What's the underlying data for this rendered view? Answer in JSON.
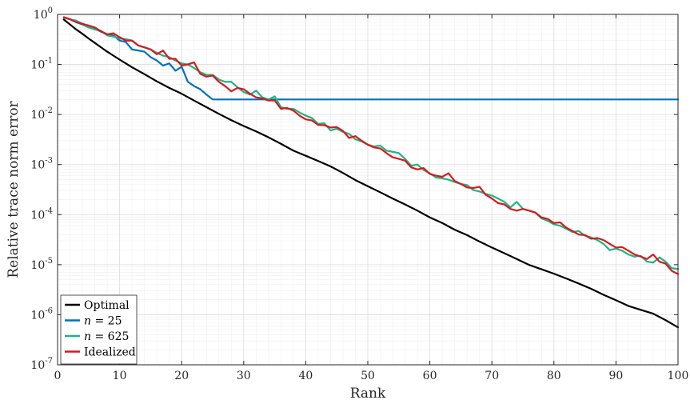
{
  "chart_data": {
    "type": "line",
    "xlabel": "Rank",
    "ylabel": "Relative trace norm error",
    "xlim": [
      0,
      100
    ],
    "ylim": [
      1e-07,
      1
    ],
    "yscale": "log",
    "grid": true,
    "legend_position": "bottom-left",
    "x_ticks": [
      0,
      10,
      20,
      30,
      40,
      50,
      60,
      70,
      80,
      90,
      100
    ],
    "x_tick_labels": [
      "0",
      "10",
      "20",
      "30",
      "40",
      "50",
      "60",
      "70",
      "80",
      "90",
      "100"
    ],
    "y_ticks": [
      1e-07,
      1e-06,
      1e-05,
      0.0001,
      0.001,
      0.01,
      0.1,
      1
    ],
    "y_tick_exponents": [
      "-7",
      "-6",
      "-5",
      "-4",
      "-3",
      "-2",
      "-1",
      "0"
    ],
    "y_tick_base": "10",
    "series": [
      {
        "name": "Optimal",
        "color": "#000000",
        "points": [
          [
            1,
            0.79
          ],
          [
            2,
            0.63
          ],
          [
            3,
            0.5
          ],
          [
            4,
            0.41
          ],
          [
            5,
            0.33
          ],
          [
            6,
            0.27
          ],
          [
            7,
            0.22
          ],
          [
            8,
            0.18
          ],
          [
            10,
            0.125
          ],
          [
            12,
            0.088
          ],
          [
            14,
            0.064
          ],
          [
            16,
            0.046
          ],
          [
            18,
            0.034
          ],
          [
            20,
            0.026
          ],
          [
            22,
            0.019
          ],
          [
            24,
            0.014
          ],
          [
            26,
            0.0103
          ],
          [
            28,
            0.0077
          ],
          [
            30,
            0.0059
          ],
          [
            32,
            0.0046
          ],
          [
            34,
            0.0035
          ],
          [
            36,
            0.0026
          ],
          [
            38,
            0.0019
          ],
          [
            40,
            0.0015
          ],
          [
            42,
            0.00118
          ],
          [
            44,
            0.00092
          ],
          [
            46,
            0.00068
          ],
          [
            48,
            0.00049
          ],
          [
            50,
            0.00037
          ],
          [
            52,
            0.00028
          ],
          [
            54,
            0.00021
          ],
          [
            56,
            0.00016
          ],
          [
            58,
            0.00012
          ],
          [
            60,
            8.8e-05
          ],
          [
            62,
            6.8e-05
          ],
          [
            64,
            5e-05
          ],
          [
            66,
            3.9e-05
          ],
          [
            68,
            2.9e-05
          ],
          [
            70,
            2.2e-05
          ],
          [
            72,
            1.7e-05
          ],
          [
            74,
            1.3e-05
          ],
          [
            76,
            9.9e-06
          ],
          [
            78,
            8.1e-06
          ],
          [
            80,
            6.6e-06
          ],
          [
            82,
            5.3e-06
          ],
          [
            84,
            4.2e-06
          ],
          [
            86,
            3.3e-06
          ],
          [
            88,
            2.5e-06
          ],
          [
            90,
            1.95e-06
          ],
          [
            92,
            1.5e-06
          ],
          [
            94,
            1.25e-06
          ],
          [
            96,
            1.05e-06
          ],
          [
            98,
            7.8e-07
          ],
          [
            100,
            5.6e-07
          ]
        ]
      },
      {
        "name": "n = 25",
        "name_var": "n",
        "name_rest": " = 25",
        "color": "#0072BD",
        "points": [
          [
            1,
            0.87
          ],
          [
            2,
            0.8
          ],
          [
            3,
            0.7
          ],
          [
            4,
            0.63
          ],
          [
            5,
            0.55
          ],
          [
            6,
            0.52
          ],
          [
            7,
            0.45
          ],
          [
            8,
            0.4
          ],
          [
            9,
            0.38
          ],
          [
            10,
            0.3
          ],
          [
            11,
            0.28
          ],
          [
            12,
            0.2
          ],
          [
            13,
            0.19
          ],
          [
            14,
            0.18
          ],
          [
            15,
            0.14
          ],
          [
            16,
            0.12
          ],
          [
            17,
            0.095
          ],
          [
            18,
            0.105
          ],
          [
            19,
            0.075
          ],
          [
            20,
            0.09
          ],
          [
            21,
            0.045
          ],
          [
            22,
            0.037
          ],
          [
            23,
            0.032
          ],
          [
            24,
            0.025
          ],
          [
            25,
            0.02
          ],
          [
            100,
            0.02
          ]
        ]
      },
      {
        "name": "n = 625",
        "name_var": "n",
        "name_rest": " = 625",
        "color": "#20B482",
        "points": [
          [
            1,
            0.86
          ],
          [
            2,
            0.8
          ],
          [
            3,
            0.75
          ],
          [
            4,
            0.65
          ],
          [
            5,
            0.55
          ],
          [
            6,
            0.5
          ],
          [
            7,
            0.47
          ],
          [
            8,
            0.38
          ],
          [
            9,
            0.36
          ],
          [
            10,
            0.33
          ],
          [
            11,
            0.32
          ],
          [
            12,
            0.3
          ],
          [
            13,
            0.24
          ],
          [
            14,
            0.22
          ],
          [
            15,
            0.2
          ],
          [
            16,
            0.17
          ],
          [
            17,
            0.15
          ],
          [
            18,
            0.14
          ],
          [
            19,
            0.12
          ],
          [
            20,
            0.105
          ],
          [
            21,
            0.1
          ],
          [
            22,
            0.085
          ],
          [
            23,
            0.07
          ],
          [
            24,
            0.062
          ],
          [
            25,
            0.062
          ],
          [
            26,
            0.05
          ],
          [
            27,
            0.045
          ],
          [
            28,
            0.045
          ],
          [
            29,
            0.035
          ],
          [
            30,
            0.028
          ],
          [
            31,
            0.025
          ],
          [
            32,
            0.03
          ],
          [
            33,
            0.022
          ],
          [
            34,
            0.02
          ],
          [
            35,
            0.023
          ],
          [
            36,
            0.014
          ],
          [
            37,
            0.013
          ],
          [
            38,
            0.013
          ],
          [
            39,
            0.011
          ],
          [
            40,
            0.0095
          ],
          [
            41,
            0.0085
          ],
          [
            42,
            0.0065
          ],
          [
            43,
            0.0067
          ],
          [
            44,
            0.0048
          ],
          [
            45,
            0.0052
          ],
          [
            46,
            0.0045
          ],
          [
            47,
            0.0041
          ],
          [
            48,
            0.0032
          ],
          [
            49,
            0.0029
          ],
          [
            50,
            0.0025
          ],
          [
            51,
            0.0023
          ],
          [
            52,
            0.0024
          ],
          [
            53,
            0.0019
          ],
          [
            54,
            0.0018
          ],
          [
            55,
            0.0017
          ],
          [
            56,
            0.0013
          ],
          [
            57,
            0.00095
          ],
          [
            58,
            0.001
          ],
          [
            59,
            0.00078
          ],
          [
            60,
            0.00067
          ],
          [
            61,
            0.00055
          ],
          [
            62,
            0.00053
          ],
          [
            63,
            0.0005
          ],
          [
            64,
            0.00045
          ],
          [
            65,
            0.00041
          ],
          [
            66,
            0.00039
          ],
          [
            67,
            0.00031
          ],
          [
            68,
            0.00029
          ],
          [
            69,
            0.00026
          ],
          [
            70,
            0.00024
          ],
          [
            71,
            0.00021
          ],
          [
            72,
            0.00018
          ],
          [
            73,
            0.00014
          ],
          [
            74,
            0.00018
          ],
          [
            75,
            0.00013
          ],
          [
            76,
            0.00012
          ],
          [
            77,
            0.00011
          ],
          [
            78,
            8.4e-05
          ],
          [
            79,
            7.5e-05
          ],
          [
            80,
            6.4e-05
          ],
          [
            81,
            6e-05
          ],
          [
            82,
            5.2e-05
          ],
          [
            83,
            4.5e-05
          ],
          [
            84,
            4.7e-05
          ],
          [
            85,
            3.8e-05
          ],
          [
            86,
            3.5e-05
          ],
          [
            87,
            3.1e-05
          ],
          [
            88,
            2.6e-05
          ],
          [
            89,
            1.95e-05
          ],
          [
            90,
            2.1e-05
          ],
          [
            91,
            1.9e-05
          ],
          [
            92,
            1.6e-05
          ],
          [
            93,
            1.45e-05
          ],
          [
            94,
            1.5e-05
          ],
          [
            95,
            1.15e-05
          ],
          [
            96,
            1.1e-05
          ],
          [
            97,
            1.4e-05
          ],
          [
            98,
            1.15e-05
          ],
          [
            99,
            8.5e-06
          ],
          [
            100,
            8.2e-06
          ]
        ]
      },
      {
        "name": "Idealized",
        "color": "#D7191C",
        "points": [
          [
            1,
            0.88
          ],
          [
            2,
            0.8
          ],
          [
            3,
            0.7
          ],
          [
            4,
            0.65
          ],
          [
            5,
            0.6
          ],
          [
            6,
            0.55
          ],
          [
            7,
            0.46
          ],
          [
            8,
            0.4
          ],
          [
            9,
            0.42
          ],
          [
            10,
            0.35
          ],
          [
            11,
            0.3
          ],
          [
            12,
            0.3
          ],
          [
            13,
            0.24
          ],
          [
            14,
            0.22
          ],
          [
            15,
            0.2
          ],
          [
            16,
            0.16
          ],
          [
            17,
            0.19
          ],
          [
            18,
            0.13
          ],
          [
            19,
            0.13
          ],
          [
            20,
            0.095
          ],
          [
            21,
            0.1
          ],
          [
            22,
            0.11
          ],
          [
            23,
            0.065
          ],
          [
            24,
            0.057
          ],
          [
            25,
            0.06
          ],
          [
            26,
            0.045
          ],
          [
            27,
            0.037
          ],
          [
            28,
            0.029
          ],
          [
            29,
            0.034
          ],
          [
            30,
            0.032
          ],
          [
            31,
            0.026
          ],
          [
            32,
            0.022
          ],
          [
            33,
            0.021
          ],
          [
            34,
            0.019
          ],
          [
            35,
            0.019
          ],
          [
            36,
            0.013
          ],
          [
            37,
            0.0135
          ],
          [
            38,
            0.012
          ],
          [
            39,
            0.0095
          ],
          [
            40,
            0.008
          ],
          [
            41,
            0.0076
          ],
          [
            42,
            0.0062
          ],
          [
            43,
            0.0061
          ],
          [
            44,
            0.0055
          ],
          [
            45,
            0.0056
          ],
          [
            46,
            0.0047
          ],
          [
            47,
            0.0034
          ],
          [
            48,
            0.0037
          ],
          [
            49,
            0.003
          ],
          [
            50,
            0.0025
          ],
          [
            51,
            0.0022
          ],
          [
            52,
            0.0021
          ],
          [
            53,
            0.0017
          ],
          [
            54,
            0.0014
          ],
          [
            55,
            0.0013
          ],
          [
            56,
            0.0012
          ],
          [
            57,
            0.00088
          ],
          [
            58,
            0.0008
          ],
          [
            59,
            0.00085
          ],
          [
            60,
            0.00065
          ],
          [
            61,
            0.0006
          ],
          [
            62,
            0.00057
          ],
          [
            63,
            0.00067
          ],
          [
            64,
            0.00047
          ],
          [
            65,
            0.00041
          ],
          [
            66,
            0.00035
          ],
          [
            67,
            0.00034
          ],
          [
            68,
            0.00036
          ],
          [
            69,
            0.00025
          ],
          [
            70,
            0.00021
          ],
          [
            71,
            0.00017
          ],
          [
            72,
            0.00016
          ],
          [
            73,
            0.00013
          ],
          [
            74,
            0.00012
          ],
          [
            75,
            0.00013
          ],
          [
            76,
            0.00012
          ],
          [
            77,
            0.00011
          ],
          [
            78,
            8.8e-05
          ],
          [
            79,
            8.2e-05
          ],
          [
            80,
            6.8e-05
          ],
          [
            81,
            7e-05
          ],
          [
            82,
            5.5e-05
          ],
          [
            83,
            4.7e-05
          ],
          [
            84,
            4e-05
          ],
          [
            85,
            3.9e-05
          ],
          [
            86,
            3.3e-05
          ],
          [
            87,
            3.4e-05
          ],
          [
            88,
            3.1e-05
          ],
          [
            89,
            2.6e-05
          ],
          [
            90,
            2.2e-05
          ],
          [
            91,
            2.25e-05
          ],
          [
            92,
            1.9e-05
          ],
          [
            93,
            1.6e-05
          ],
          [
            94,
            1.45e-05
          ],
          [
            95,
            1.3e-05
          ],
          [
            96,
            1.6e-05
          ],
          [
            97,
            1.15e-05
          ],
          [
            98,
            1.05e-05
          ],
          [
            99,
            7.5e-06
          ],
          [
            100,
            6.5e-06
          ]
        ]
      }
    ]
  }
}
